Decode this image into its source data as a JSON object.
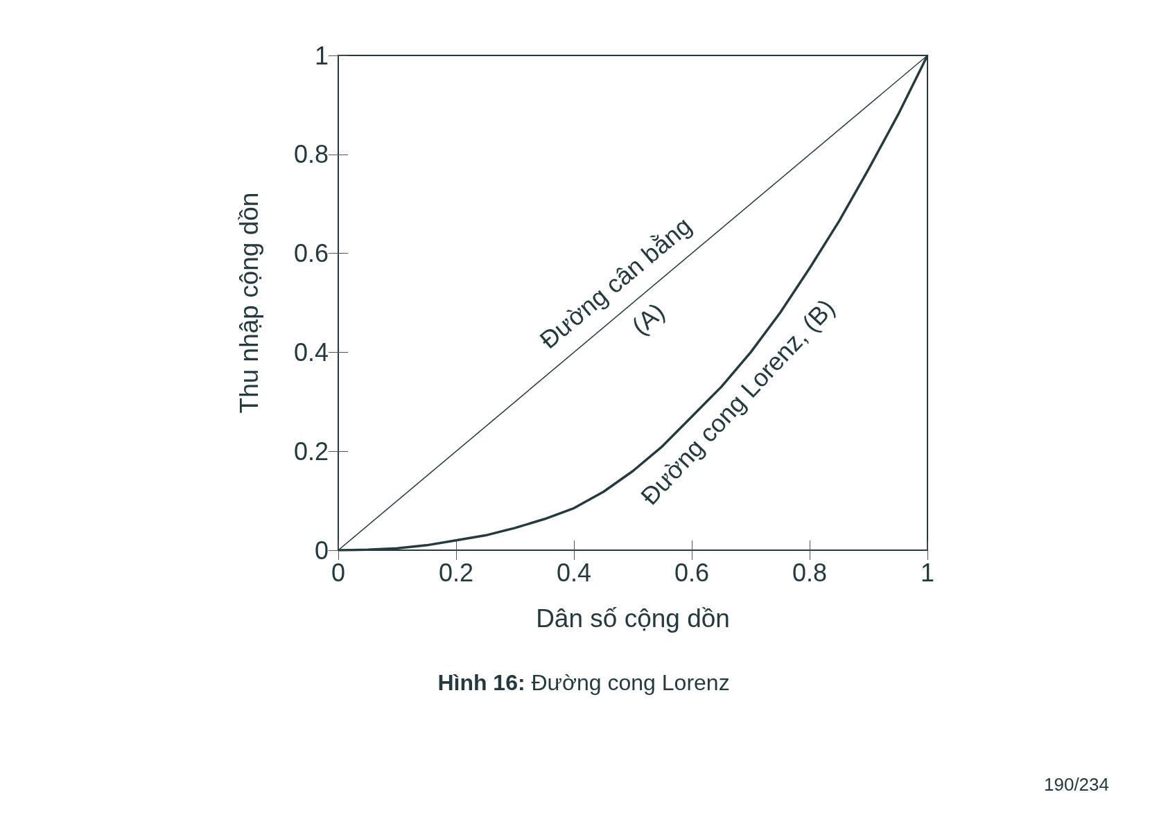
{
  "chart_data": {
    "type": "line",
    "xlabel": "Dân số cộng dồn",
    "ylabel": "Thu nhập cộng dồn",
    "xlim": [
      0,
      1
    ],
    "ylim": [
      0,
      1
    ],
    "xticks": [
      0,
      0.2,
      0.4,
      0.6,
      0.8,
      1
    ],
    "yticks": [
      0,
      0.2,
      0.4,
      0.6,
      0.8,
      1
    ],
    "grid": false,
    "series": [
      {
        "color": "#263a3e",
        "x": [
          0,
          1
        ],
        "values": [
          0,
          1
        ]
      },
      {
        "color": "#263a3e",
        "x": [
          0,
          0.05,
          0.1,
          0.15,
          0.2,
          0.25,
          0.3,
          0.35,
          0.4,
          0.45,
          0.5,
          0.55,
          0.6,
          0.65,
          0.7,
          0.75,
          0.8,
          0.85,
          0.9,
          0.95,
          1
        ],
        "values": [
          0,
          0.001,
          0.004,
          0.01,
          0.02,
          0.03,
          0.045,
          0.063,
          0.085,
          0.118,
          0.16,
          0.21,
          0.27,
          0.33,
          0.4,
          0.48,
          0.57,
          0.665,
          0.77,
          0.88,
          1
        ]
      }
    ],
    "annotations": [
      "Đường cân bằng",
      "(A)",
      "Đường cong Lorenz, (B)",
      "Hình 16: Đường cong Lorenz",
      "190/234"
    ]
  }
}
